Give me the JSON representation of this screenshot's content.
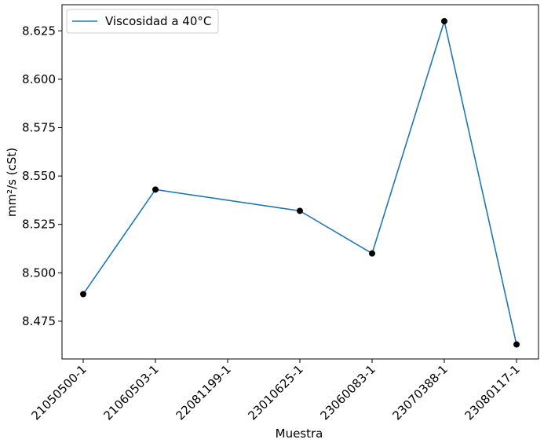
{
  "chart_data": {
    "type": "line",
    "categories": [
      "21050500-1",
      "21060503-1",
      "22081199-1",
      "23010625-1",
      "23060083-1",
      "23070388-1",
      "23080117-1"
    ],
    "series": [
      {
        "name": "Viscosidad a 40°C",
        "color": "#1f77b4",
        "marker_color": "#000000",
        "points": [
          {
            "x": "21050500-1",
            "y": 8.489
          },
          {
            "x": "21060503-1",
            "y": 8.543
          },
          {
            "x": "23010625-1",
            "y": 8.532
          },
          {
            "x": "23060083-1",
            "y": 8.51
          },
          {
            "x": "23070388-1",
            "y": 8.63
          },
          {
            "x": "23080117-1",
            "y": 8.463
          }
        ]
      }
    ],
    "title": "",
    "xlabel": "Muestra",
    "ylabel": "mm²/s (cSt)",
    "ylim": [
      8.4555,
      8.6385
    ],
    "yticks": [
      "8.475",
      "8.500",
      "8.525",
      "8.550",
      "8.575",
      "8.600",
      "8.625"
    ],
    "grid": false,
    "legend_position": "top-left"
  }
}
